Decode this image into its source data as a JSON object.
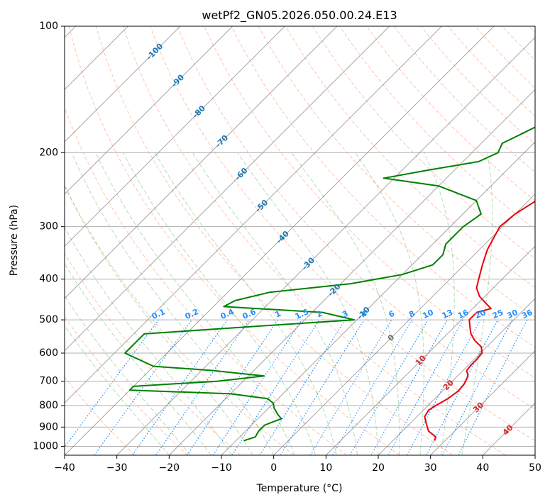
{
  "chart_data": {
    "type": "line",
    "subtype": "skew-t log-p diagram",
    "title": "wetPf2_GN05.2026.050.00.24.E13",
    "xlabel": "Temperature (°C)",
    "ylabel": "Pressure (hPa)",
    "xlim": [
      -40,
      50
    ],
    "ylim": [
      1050,
      100
    ],
    "y_scale": "log",
    "grid": true,
    "x_ticks": [
      "−40",
      "−30",
      "−20",
      "−10",
      "0",
      "10",
      "20",
      "30",
      "40",
      "50"
    ],
    "y_ticks": [
      "100",
      "200",
      "300",
      "400",
      "500",
      "600",
      "700",
      "800",
      "900",
      "1000"
    ],
    "series": [
      {
        "role": "temperature",
        "color": "#e8000b",
        "points": [
          {
            "p": 970,
            "t": 28.0
          },
          {
            "p": 950,
            "t": 27.5
          },
          {
            "p": 920,
            "t": 25.0
          },
          {
            "p": 880,
            "t": 23.0
          },
          {
            "p": 850,
            "t": 21.5
          },
          {
            "p": 820,
            "t": 21.0
          },
          {
            "p": 800,
            "t": 21.5
          },
          {
            "p": 770,
            "t": 22.5
          },
          {
            "p": 740,
            "t": 23.0
          },
          {
            "p": 710,
            "t": 22.8
          },
          {
            "p": 680,
            "t": 22.0
          },
          {
            "p": 660,
            "t": 20.7
          },
          {
            "p": 640,
            "t": 20.5
          },
          {
            "p": 620,
            "t": 20.5
          },
          {
            "p": 600,
            "t": 20.3
          },
          {
            "p": 580,
            "t": 19.0
          },
          {
            "p": 560,
            "t": 16.5
          },
          {
            "p": 540,
            "t": 14.5
          },
          {
            "p": 520,
            "t": 13.0
          },
          {
            "p": 500,
            "t": 11.5
          },
          {
            "p": 480,
            "t": 11.5
          },
          {
            "p": 470,
            "t": 13.5
          },
          {
            "p": 460,
            "t": 12.0
          },
          {
            "p": 440,
            "t": 9.0
          },
          {
            "p": 420,
            "t": 6.8
          },
          {
            "p": 400,
            "t": 5.5
          },
          {
            "p": 370,
            "t": 3.5
          },
          {
            "p": 340,
            "t": 1.5
          },
          {
            "p": 300,
            "t": -0.5
          },
          {
            "p": 280,
            "t": 0.0
          },
          {
            "p": 260,
            "t": 1.5
          },
          {
            "p": 240,
            "t": 4.0
          },
          {
            "p": 220,
            "t": 6.5
          },
          {
            "p": 200,
            "t": 7.5
          },
          {
            "p": 180,
            "t": 7.5
          },
          {
            "p": 160,
            "t": 7.0
          },
          {
            "p": 140,
            "t": 6.5
          },
          {
            "p": 120,
            "t": 6.5
          },
          {
            "p": 100,
            "t": 7.0
          }
        ]
      },
      {
        "role": "dewpoint",
        "color": "#008000",
        "points": [
          {
            "p": 970,
            "t": -8.5
          },
          {
            "p": 950,
            "t": -7.0
          },
          {
            "p": 920,
            "t": -7.5
          },
          {
            "p": 890,
            "t": -7.5
          },
          {
            "p": 860,
            "t": -5.5
          },
          {
            "p": 840,
            "t": -7.0
          },
          {
            "p": 810,
            "t": -9.0
          },
          {
            "p": 790,
            "t": -10.0
          },
          {
            "p": 770,
            "t": -12.0
          },
          {
            "p": 750,
            "t": -20.0
          },
          {
            "p": 735,
            "t": -40.0
          },
          {
            "p": 720,
            "t": -40.0
          },
          {
            "p": 700,
            "t": -25.0
          },
          {
            "p": 680,
            "t": -17.0
          },
          {
            "p": 660,
            "t": -28.0
          },
          {
            "p": 645,
            "t": -40.0
          },
          {
            "p": 600,
            "t": -48.0
          },
          {
            "p": 540,
            "t": -48.0
          },
          {
            "p": 520,
            "t": -30.0
          },
          {
            "p": 500,
            "t": -10.5
          },
          {
            "p": 480,
            "t": -18.0
          },
          {
            "p": 465,
            "t": -38.0
          },
          {
            "p": 450,
            "t": -37.0
          },
          {
            "p": 430,
            "t": -32.0
          },
          {
            "p": 410,
            "t": -18.0
          },
          {
            "p": 390,
            "t": -10.0
          },
          {
            "p": 370,
            "t": -6.0
          },
          {
            "p": 350,
            "t": -6.0
          },
          {
            "p": 330,
            "t": -7.5
          },
          {
            "p": 300,
            "t": -7.5
          },
          {
            "p": 280,
            "t": -6.5
          },
          {
            "p": 260,
            "t": -10.0
          },
          {
            "p": 240,
            "t": -20.0
          },
          {
            "p": 230,
            "t": -32.0
          },
          {
            "p": 220,
            "t": -25.0
          },
          {
            "p": 210,
            "t": -17.0
          },
          {
            "p": 200,
            "t": -15.0
          },
          {
            "p": 190,
            "t": -16.0
          },
          {
            "p": 180,
            "t": -14.0
          },
          {
            "p": 170,
            "t": -12.0
          },
          {
            "p": 160,
            "t": -10.5
          },
          {
            "p": 150,
            "t": -11.0
          },
          {
            "p": 140,
            "t": -11.5
          },
          {
            "p": 130,
            "t": -11.0
          },
          {
            "p": 120,
            "t": -8.0
          },
          {
            "p": 110,
            "t": -4.0
          },
          {
            "p": 100,
            "t": 0.0
          }
        ]
      }
    ],
    "isotherm_spacing_c": 10,
    "isotherm_labels": [
      {
        "text": "-100",
        "p": 115
      },
      {
        "text": "-90",
        "p": 135
      },
      {
        "text": "-80",
        "p": 160
      },
      {
        "text": "-70",
        "p": 188
      },
      {
        "text": "-60",
        "p": 225
      },
      {
        "text": "-50",
        "p": 268
      },
      {
        "text": "-40",
        "p": 318
      },
      {
        "text": "-30",
        "p": 368
      },
      {
        "text": "-20",
        "p": 425
      },
      {
        "text": "-10",
        "p": 482
      },
      {
        "text": "0",
        "p": 552
      },
      {
        "text": "10",
        "p": 625
      },
      {
        "text": "20",
        "p": 715
      },
      {
        "text": "30",
        "p": 808
      },
      {
        "text": "40",
        "p": 915
      }
    ],
    "mixing_ratio_labels": [
      "0.1",
      "0.2",
      "0.4",
      "0.6",
      "1",
      "1.5",
      "2",
      "3",
      "4",
      "6",
      "8",
      "10",
      "13",
      "16",
      "20",
      "25",
      "30",
      "36"
    ],
    "mixing_ratio_label_pressure": 500,
    "colors": {
      "temperature": "#e8000b",
      "dewpoint": "#008000",
      "isotherm": "#808080",
      "dry_adiabat": "#ff7f50",
      "moist_adiabat": "#2ca02c",
      "mixing_ratio": "#1e90ff",
      "label_cold": "#1f77b4",
      "label_zero": "#707070",
      "label_warm": "#d62728"
    }
  }
}
